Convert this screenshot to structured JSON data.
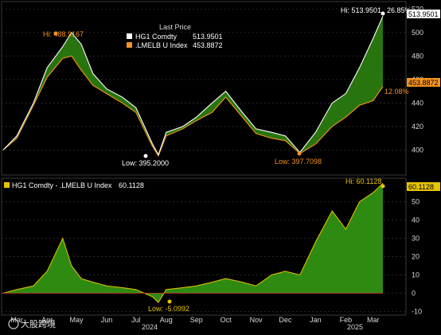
{
  "chart_data": [
    {
      "type": "line",
      "legend": {
        "title": "Last Price",
        "entries": [
          {
            "name": "HG1 Comdty",
            "value": "513.9501",
            "color": "#ffffff"
          },
          {
            "name": ".LMELB U Index",
            "value": "453.8872",
            "color": "#f39321"
          }
        ]
      },
      "ylim": [
        380,
        525
      ],
      "yticks": [
        "400",
        "420",
        "440",
        "460",
        "480",
        "500",
        "520"
      ],
      "annotations": {
        "hi_top": "Hi: 513.9501",
        "hi_top_pct": "26.85%",
        "hi_left": "Hi: 488.9167",
        "low_left": "Low: 395.2000",
        "low_right": "Low: 397.7098",
        "pct_lme": "12.08%"
      },
      "last_tags": {
        "hg": "513.9501",
        "lme": "453.8872"
      },
      "x": [
        "2024-03-01",
        "2024-03-15",
        "2024-04-01",
        "2024-04-15",
        "2024-05-01",
        "2024-05-10",
        "2024-05-20",
        "2024-06-01",
        "2024-06-15",
        "2024-07-01",
        "2024-07-15",
        "2024-08-01",
        "2024-08-07",
        "2024-08-15",
        "2024-09-01",
        "2024-09-15",
        "2024-10-01",
        "2024-10-15",
        "2024-11-01",
        "2024-11-15",
        "2024-12-01",
        "2024-12-15",
        "2024-12-30",
        "2025-01-15",
        "2025-02-01",
        "2025-02-15",
        "2025-03-01",
        "2025-03-15",
        "2025-03-25"
      ],
      "series": [
        {
          "name": "HG1 Comdty",
          "color": "#ffffff",
          "values": [
            400,
            412,
            440,
            470,
            488,
            500,
            490,
            465,
            452,
            445,
            436,
            405,
            396,
            415,
            420,
            428,
            440,
            450,
            432,
            418,
            415,
            412,
            398,
            415,
            440,
            448,
            470,
            495,
            514
          ]
        },
        {
          "name": ".LMELB U Index",
          "color": "#f39321",
          "values": [
            400,
            410,
            438,
            462,
            478,
            480,
            468,
            455,
            448,
            440,
            432,
            403,
            395,
            412,
            418,
            425,
            432,
            445,
            428,
            414,
            410,
            408,
            397,
            405,
            420,
            428,
            438,
            442,
            454
          ]
        }
      ]
    },
    {
      "type": "area",
      "legend": {
        "entries": [
          {
            "name": "HG1 Comdty - .LMELB U Index",
            "value": "60.1128",
            "color": "#e8c400"
          }
        ]
      },
      "ylim": [
        -12,
        62
      ],
      "yticks": [
        "-10",
        "0",
        "10",
        "20",
        "30",
        "40",
        "50"
      ],
      "annotations": {
        "hi": "Hi: 60.1128",
        "low": "Low: -5.0992"
      },
      "last_tag": "60.1128",
      "x": [
        "2024-03-01",
        "2024-03-15",
        "2024-04-01",
        "2024-04-15",
        "2024-05-01",
        "2024-05-10",
        "2024-05-20",
        "2024-06-01",
        "2024-06-15",
        "2024-07-01",
        "2024-07-15",
        "2024-08-01",
        "2024-08-07",
        "2024-08-15",
        "2024-09-01",
        "2024-09-15",
        "2024-10-01",
        "2024-10-15",
        "2024-11-01",
        "2024-11-15",
        "2024-12-01",
        "2024-12-15",
        "2024-12-30",
        "2025-01-15",
        "2025-02-01",
        "2025-02-15",
        "2025-03-01",
        "2025-03-15",
        "2025-03-25"
      ],
      "values": [
        0,
        2,
        4,
        12,
        30,
        15,
        8,
        6,
        4,
        3,
        2,
        -2,
        -5.1,
        2,
        3,
        4,
        6,
        8,
        6,
        4,
        10,
        12,
        10,
        28,
        45,
        35,
        50,
        55,
        60.1
      ]
    }
  ],
  "x_axis": {
    "months": [
      "Mar",
      "Apr",
      "May",
      "Jun",
      "Jul",
      "Aug",
      "Sep",
      "Oct",
      "Nov",
      "Dec",
      "Jan",
      "Feb",
      "Mar"
    ],
    "years": [
      "2024",
      "2025"
    ]
  },
  "watermark": "大股跨境"
}
